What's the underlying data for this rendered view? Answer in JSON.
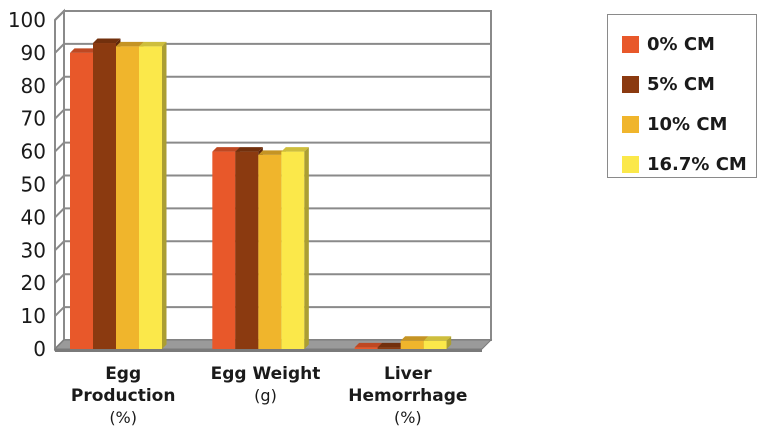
{
  "chart_data": {
    "type": "bar",
    "title": "",
    "xlabel": "",
    "ylabel": "",
    "ylim": [
      0,
      100
    ],
    "yticks": [
      0,
      10,
      20,
      30,
      40,
      50,
      60,
      70,
      80,
      90,
      100
    ],
    "grid": true,
    "legend_position": "right",
    "categories": [
      {
        "lines": [
          "Egg",
          "Production"
        ],
        "unit": "(%)"
      },
      {
        "lines": [
          "Egg Weight"
        ],
        "unit": "(g)"
      },
      {
        "lines": [
          "Liver",
          "Hemorrhage"
        ],
        "unit": "(%)"
      }
    ],
    "series": [
      {
        "name": "0% CM",
        "color": "#e8582a",
        "values": [
          90,
          60,
          0.5
        ]
      },
      {
        "name": "5% CM",
        "color": "#8b3a10",
        "values": [
          93,
          60,
          0.5
        ]
      },
      {
        "name": "10% CM",
        "color": "#f0b52c",
        "values": [
          92,
          59,
          2.5
        ]
      },
      {
        "name": "16.7% CM",
        "color": "#fbe84a",
        "values": [
          92,
          60,
          2.5
        ]
      }
    ]
  }
}
